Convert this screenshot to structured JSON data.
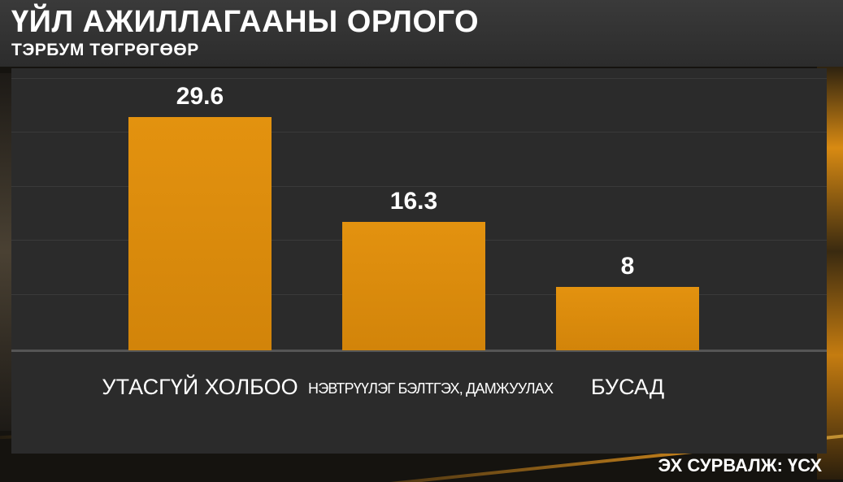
{
  "header": {
    "title": "ҮЙЛ АЖИЛЛАГААНЫ ОРЛОГО",
    "subtitle": "ТЭРБУМ ТӨГРӨГӨӨР"
  },
  "footer": {
    "source": "ЭХ СУРВАЛЖ: ҮСХ"
  },
  "colors": {
    "bar": "#e0900e",
    "panel": "#2b2b2b",
    "title_band": "#333333",
    "text": "#ffffff"
  },
  "chart_data": {
    "type": "bar",
    "title": "ҮЙЛ АЖИЛЛАГААНЫ ОРЛОГО",
    "subtitle": "ТЭРБУМ ТӨГРӨГӨӨР",
    "categories": [
      "УТАСГҮЙ ХОЛБОО",
      "НЭВТРҮҮЛЭГ БЭЛТГЭХ, ДАМЖУУЛАХ",
      "БУСАД"
    ],
    "values": [
      29.6,
      16.3,
      8
    ],
    "value_labels": [
      "29.6",
      "16.3",
      "8"
    ],
    "xlabel": "",
    "ylabel": "",
    "ylim": [
      0,
      34
    ],
    "grid": true,
    "legend": "none"
  }
}
